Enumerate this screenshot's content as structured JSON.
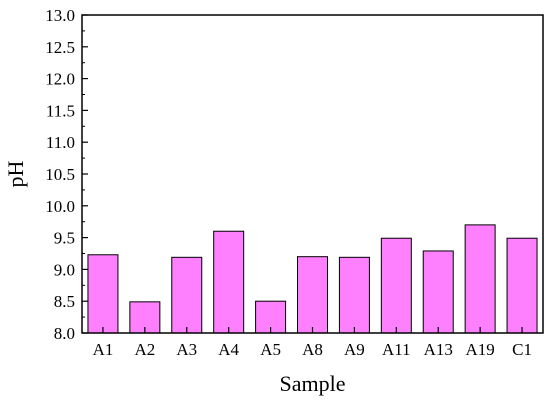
{
  "chart_data": {
    "type": "bar",
    "title": "",
    "xlabel": "Sample",
    "ylabel": "pH",
    "ylim": [
      8.0,
      13.0
    ],
    "yticks": [
      "8.0",
      "8.5",
      "9.0",
      "9.5",
      "10.0",
      "10.5",
      "11.0",
      "11.5",
      "12.0",
      "12.5",
      "13.0"
    ],
    "categories": [
      "A1",
      "A2",
      "A3",
      "A4",
      "A5",
      "A8",
      "A9",
      "A11",
      "A13",
      "A19",
      "C1"
    ],
    "values": [
      9.23,
      8.49,
      9.19,
      9.6,
      8.5,
      9.2,
      9.19,
      9.49,
      9.29,
      9.7,
      9.49
    ],
    "grid": false,
    "legend": "none",
    "colors": {
      "bar_fill": "#ff80ff",
      "bar_stroke": "#000000",
      "axis": "#000000"
    }
  }
}
